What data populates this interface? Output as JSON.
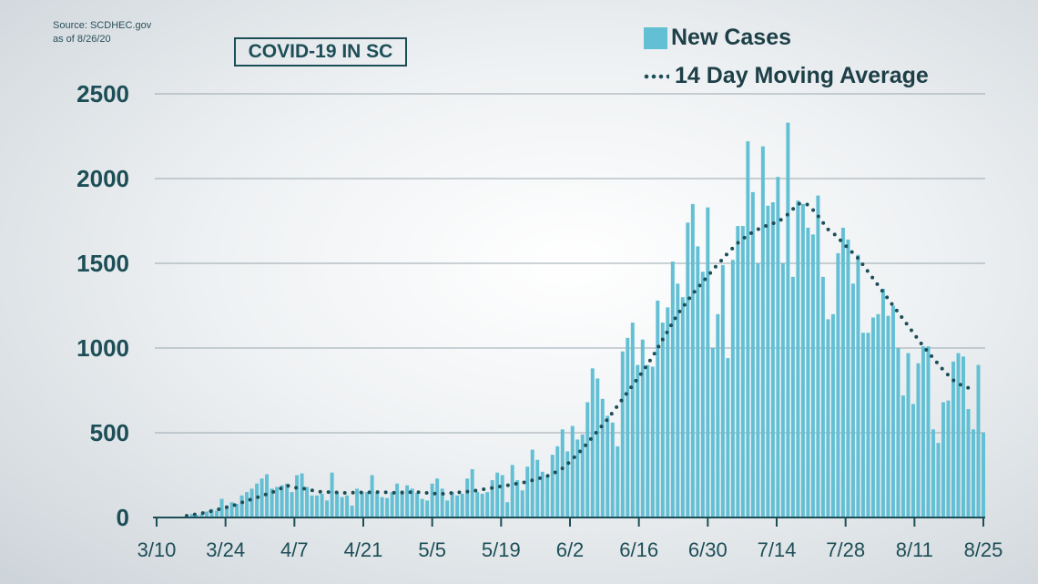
{
  "source": {
    "line1": "Source: SCDHEC.gov",
    "line2": "as of 8/26/20"
  },
  "chart_data": {
    "type": "bar",
    "title": "COVID-19 IN SC",
    "xlabel": "",
    "ylabel": "",
    "ylim": [
      0,
      2500
    ],
    "yticks": [
      0,
      500,
      1000,
      1500,
      2000,
      2500
    ],
    "grid": true,
    "legend_position": "top-right",
    "x_tick_labels": [
      "3/10",
      "3/24",
      "4/7",
      "4/21",
      "5/5",
      "5/19",
      "6/2",
      "6/16",
      "6/30",
      "7/14",
      "7/28",
      "8/11",
      "8/25"
    ],
    "x_start": "3/10",
    "x_end": "8/25",
    "series": [
      {
        "name": "New Cases",
        "type": "bar",
        "color": "#63bfd4",
        "values": [
          0,
          0,
          2,
          3,
          4,
          5,
          5,
          20,
          15,
          20,
          35,
          50,
          40,
          110,
          70,
          90,
          80,
          130,
          150,
          170,
          200,
          230,
          255,
          170,
          180,
          190,
          200,
          150,
          250,
          260,
          180,
          130,
          130,
          140,
          100,
          265,
          150,
          120,
          130,
          70,
          170,
          150,
          150,
          250,
          150,
          120,
          115,
          150,
          200,
          160,
          190,
          170,
          145,
          110,
          100,
          200,
          230,
          170,
          100,
          150,
          130,
          140,
          230,
          285,
          150,
          140,
          150,
          220,
          265,
          250,
          90,
          310,
          220,
          160,
          300,
          400,
          340,
          270,
          250,
          370,
          420,
          520,
          390,
          540,
          460,
          490,
          680,
          880,
          820,
          700,
          600,
          560,
          420,
          980,
          1060,
          1150,
          900,
          1050,
          900,
          890,
          1280,
          1150,
          1240,
          1510,
          1380,
          1300,
          1740,
          1850,
          1600,
          1450,
          1830,
          1000,
          1200,
          1490,
          940,
          1520,
          1720,
          1720,
          2220,
          1920,
          1500,
          2190,
          1840,
          1860,
          2010,
          1500,
          2330,
          1420,
          1870,
          1850,
          1710,
          1670,
          1900,
          1420,
          1170,
          1200,
          1560,
          1710,
          1640,
          1380,
          1550,
          1090,
          1090,
          1180,
          1200,
          1350,
          1190,
          1250,
          1000,
          720,
          970,
          670,
          910,
          1010,
          1010,
          520,
          440,
          680,
          690,
          920,
          970,
          950,
          640,
          520,
          900,
          500
        ]
      },
      {
        "name": "14 Day Moving Average",
        "type": "line",
        "style": "dotted",
        "color": "#1d4e57",
        "values": [
          0,
          0,
          1,
          2,
          4,
          6,
          10,
          15,
          20,
          25,
          30,
          38,
          45,
          52,
          60,
          68,
          78,
          88,
          98,
          108,
          118,
          128,
          138,
          148,
          160,
          175,
          190,
          178,
          175,
          172,
          168,
          160,
          155,
          150,
          150,
          150,
          148,
          145,
          145,
          146,
          147,
          148,
          148,
          150,
          150,
          150,
          148,
          146,
          145,
          146,
          148,
          150,
          150,
          148,
          145,
          142,
          140,
          140,
          142,
          145,
          148,
          150,
          152,
          156,
          160,
          165,
          170,
          175,
          180,
          185,
          190,
          195,
          200,
          205,
          212,
          220,
          228,
          235,
          245,
          258,
          272,
          290,
          315,
          345,
          375,
          405,
          440,
          475,
          510,
          545,
          580,
          620,
          660,
          700,
          740,
          780,
          820,
          860,
          905,
          950,
          1000,
          1050,
          1100,
          1150,
          1200,
          1240,
          1280,
          1320,
          1355,
          1390,
          1425,
          1460,
          1495,
          1525,
          1560,
          1590,
          1620,
          1645,
          1665,
          1685,
          1700,
          1715,
          1725,
          1735,
          1745,
          1765,
          1790,
          1820,
          1850,
          1855,
          1845,
          1815,
          1780,
          1740,
          1700,
          1680,
          1650,
          1620,
          1590,
          1560,
          1530,
          1490,
          1450,
          1410,
          1370,
          1330,
          1290,
          1250,
          1210,
          1170,
          1130,
          1090,
          1050,
          1010,
          975,
          940,
          905,
          870,
          840,
          810,
          790,
          775,
          765
        ]
      }
    ]
  }
}
